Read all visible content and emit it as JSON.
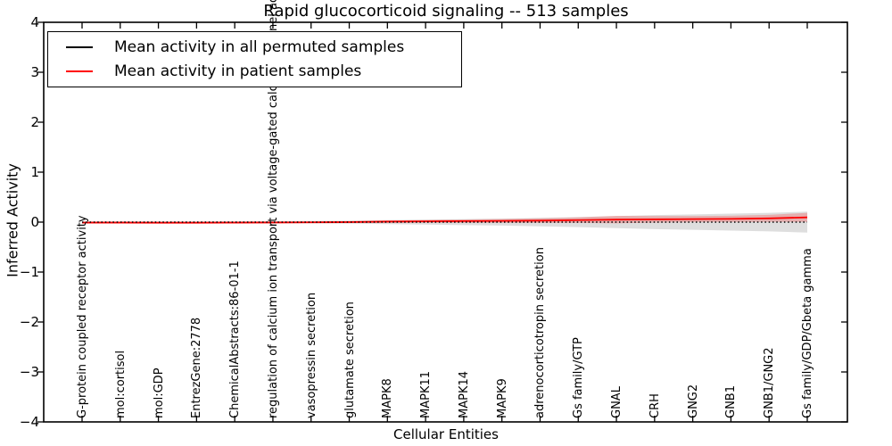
{
  "title": "Rapid glucocorticoid signaling -- 513 samples",
  "axes": {
    "ylabel": "Inferred Activity",
    "xlabel": "Cellular Entities",
    "yticks": [
      "4",
      "3",
      "2",
      "1",
      "0",
      "−1",
      "−2",
      "−3",
      "−4"
    ]
  },
  "legend": {
    "items": [
      {
        "label": "Mean activity in all permuted samples",
        "color": "#000000"
      },
      {
        "label": "Mean activity in patient samples",
        "color": "#ff0000"
      }
    ]
  },
  "chart_data": {
    "type": "line",
    "title": "Rapid glucocorticoid signaling -- 513 samples",
    "xlabel": "Cellular Entities",
    "ylabel": "Inferred Activity",
    "ylim": [
      -4,
      4
    ],
    "grid": false,
    "legend_position": "upper left",
    "categories": [
      "G-protein coupled receptor activity",
      "mol:cortisol",
      "mol:GDP",
      "EntrezGene:2778",
      "ChemicalAbstracts:86-01-1",
      "regulation of calcium ion transport via voltage-gated calcium channel activity",
      "vasopressin secretion",
      "glutamate secretion",
      "MAPK8",
      "MAPK11",
      "MAPK14",
      "MAPK9",
      "adrenocorticotropin secretion",
      "Gs family/GTP",
      "GNAL",
      "CRH",
      "GNG2",
      "GNB1",
      "GNB1/GNG2",
      "Gs family/GDP/Gbeta gamma"
    ],
    "series": [
      {
        "name": "Mean activity in all permuted samples",
        "color": "#000000",
        "line_style": "dotted",
        "values": [
          0,
          0,
          0,
          0,
          0,
          0,
          0,
          0,
          0,
          0,
          0,
          0,
          0,
          0,
          0,
          0,
          0,
          0,
          0,
          0
        ],
        "band_halfwidth": [
          0.015,
          0.015,
          0.015,
          0.015,
          0.015,
          0.02,
          0.025,
          0.03,
          0.04,
          0.05,
          0.06,
          0.07,
          0.085,
          0.1,
          0.12,
          0.14,
          0.155,
          0.17,
          0.185,
          0.21
        ],
        "band_color": "#888888",
        "band_opacity": 0.28
      },
      {
        "name": "Mean activity in patient samples",
        "color": "#ff0000",
        "line_style": "solid",
        "values": [
          -0.01,
          -0.01,
          -0.012,
          -0.012,
          -0.01,
          -0.008,
          -0.005,
          0.0,
          0.01,
          0.015,
          0.02,
          0.025,
          0.03,
          0.04,
          0.05,
          0.055,
          0.06,
          0.065,
          0.075,
          0.095
        ],
        "band_halfwidth": [
          0.012,
          0.012,
          0.012,
          0.012,
          0.012,
          0.014,
          0.016,
          0.02,
          0.024,
          0.028,
          0.033,
          0.038,
          0.045,
          0.055,
          0.075,
          0.065,
          0.06,
          0.062,
          0.07,
          0.09
        ],
        "band_color": "#ff0000",
        "band_opacity": 0.22
      }
    ]
  }
}
